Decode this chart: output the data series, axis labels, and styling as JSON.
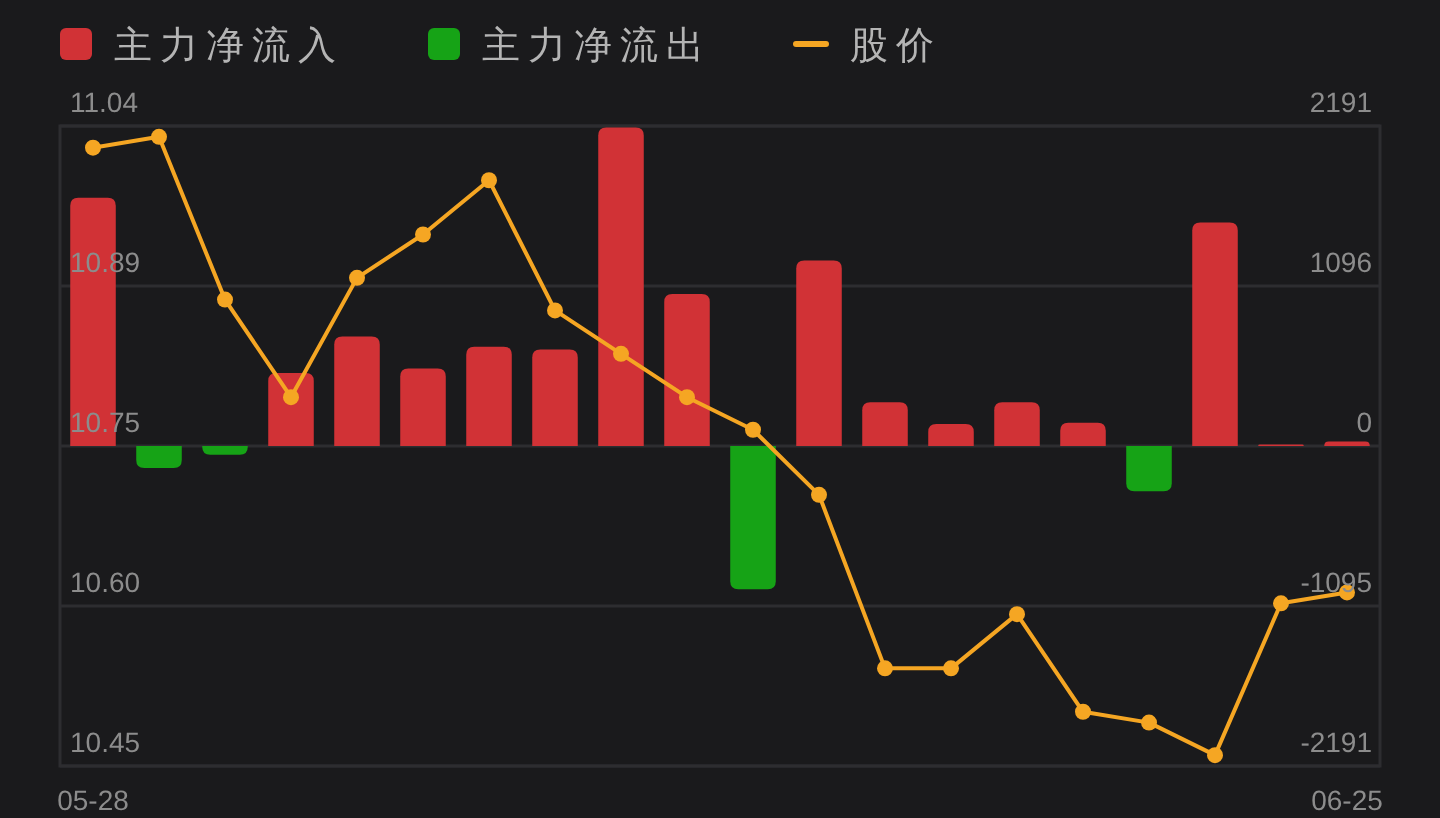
{
  "chart_data": {
    "type": "bar",
    "stacked": true,
    "legend": "top",
    "grid": "y",
    "marker": "circle",
    "categories": [
      "05-28",
      null,
      null,
      null,
      null,
      null,
      null,
      null,
      null,
      null,
      null,
      null,
      null,
      null,
      null,
      null,
      null,
      null,
      null,
      "06-25"
    ],
    "series": [
      {
        "name": "主力净流入",
        "color": "#d13236",
        "axis": "y2",
        "values": [
          1700,
          null,
          null,
          500,
          750,
          530,
          680,
          660,
          2180,
          1040,
          null,
          1270,
          300,
          150,
          300,
          160,
          null,
          1530,
          10,
          30
        ]
      },
      {
        "name": "主力净流出",
        "color": "#16a316",
        "axis": "y2",
        "values": [
          null,
          -150,
          -60,
          null,
          null,
          null,
          null,
          null,
          null,
          null,
          -980,
          null,
          null,
          null,
          null,
          null,
          -310,
          null,
          null,
          null
        ]
      },
      {
        "name": "股价",
        "type": "line",
        "color": "#f5a623",
        "values": [
          11.02,
          11.03,
          10.88,
          10.79,
          10.9,
          10.94,
          10.99,
          10.87,
          10.83,
          10.79,
          10.76,
          10.7,
          10.54,
          10.54,
          10.59,
          10.5,
          10.49,
          10.46,
          10.6,
          10.61
        ]
      }
    ],
    "ylim": [
      10.45,
      11.04
    ],
    "yticks": [
      10.45,
      {
        "value": 10.5975,
        "label": "10.60"
      },
      {
        "value": 10.745,
        "label": "10.75"
      },
      {
        "value": 10.8925,
        "label": "10.89"
      },
      11.04
    ],
    "y2lim": [
      -2191,
      2191
    ],
    "y2ticks": [
      -2191,
      -1095,
      0,
      1096,
      2191
    ]
  }
}
